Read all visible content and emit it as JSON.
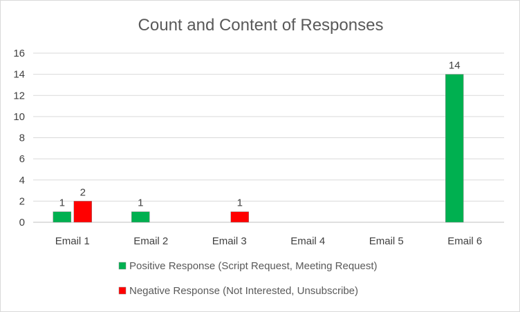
{
  "chart_data": {
    "type": "bar",
    "title": "Count and Content of Responses",
    "categories": [
      "Email 1",
      "Email 2",
      "Email 3",
      "Email 4",
      "Email 5",
      "Email 6"
    ],
    "series": [
      {
        "name": "Positive Response (Script Request, Meeting Request)",
        "color": "#00b050",
        "values": [
          1,
          1,
          null,
          null,
          null,
          14
        ]
      },
      {
        "name": "Negative Response (Not Interested, Unsubscribe)",
        "color": "#ff0000",
        "values": [
          2,
          null,
          1,
          null,
          null,
          null
        ]
      }
    ],
    "ylim": [
      0,
      16
    ],
    "yticks": [
      "0",
      "2",
      "4",
      "6",
      "8",
      "10",
      "12",
      "14",
      "16"
    ],
    "grid": true,
    "legend_position": "bottom",
    "data_labels": true
  }
}
